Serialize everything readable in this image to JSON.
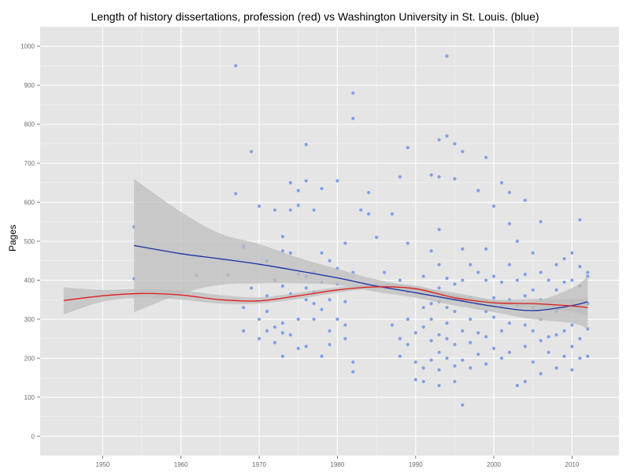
{
  "chart_data": {
    "type": "scatter",
    "title": "Length of history dissertations, profession (red) vs Washington University in St. Louis. (blue)",
    "ylabel": "Pages",
    "xlabel": "",
    "xlim": [
      1942,
      2016
    ],
    "ylim": [
      -50,
      1050
    ],
    "xticks": [
      1950,
      1960,
      1970,
      1980,
      1990,
      2000,
      2010
    ],
    "yticks": [
      0,
      100,
      200,
      300,
      400,
      500,
      600,
      700,
      800,
      900,
      1000
    ],
    "grid": true,
    "colors": {
      "points": "#7fa0e6",
      "blue_line": "#1a2fa3",
      "red_line": "#e01b1b",
      "band": "#bdbdbd",
      "panel": "#e5e5e5"
    },
    "points": [
      [
        1954,
        537
      ],
      [
        1954,
        404
      ],
      [
        1962,
        412
      ],
      [
        1966,
        414
      ],
      [
        1967,
        622
      ],
      [
        1967,
        950
      ],
      [
        1968,
        485
      ],
      [
        1968,
        488
      ],
      [
        1968,
        270
      ],
      [
        1968,
        330
      ],
      [
        1969,
        730
      ],
      [
        1969,
        380
      ],
      [
        1970,
        590
      ],
      [
        1970,
        300
      ],
      [
        1970,
        250
      ],
      [
        1971,
        450
      ],
      [
        1971,
        270
      ],
      [
        1971,
        320
      ],
      [
        1971,
        360
      ],
      [
        1972,
        400
      ],
      [
        1972,
        580
      ],
      [
        1972,
        280
      ],
      [
        1972,
        240
      ],
      [
        1973,
        475
      ],
      [
        1973,
        512
      ],
      [
        1973,
        205
      ],
      [
        1973,
        290
      ],
      [
        1973,
        385
      ],
      [
        1973,
        265
      ],
      [
        1974,
        580
      ],
      [
        1974,
        470
      ],
      [
        1974,
        650
      ],
      [
        1974,
        365
      ],
      [
        1974,
        260
      ],
      [
        1975,
        630
      ],
      [
        1975,
        592
      ],
      [
        1975,
        415
      ],
      [
        1975,
        300
      ],
      [
        1975,
        225
      ],
      [
        1976,
        748
      ],
      [
        1976,
        655
      ],
      [
        1976,
        410
      ],
      [
        1976,
        380
      ],
      [
        1976,
        350
      ],
      [
        1976,
        230
      ],
      [
        1977,
        420
      ],
      [
        1977,
        580
      ],
      [
        1977,
        370
      ],
      [
        1977,
        340
      ],
      [
        1977,
        300
      ],
      [
        1978,
        635
      ],
      [
        1978,
        470
      ],
      [
        1978,
        395
      ],
      [
        1978,
        325
      ],
      [
        1978,
        205
      ],
      [
        1979,
        450
      ],
      [
        1979,
        350
      ],
      [
        1979,
        270
      ],
      [
        1979,
        235
      ],
      [
        1980,
        655
      ],
      [
        1980,
        430
      ],
      [
        1980,
        390
      ],
      [
        1980,
        300
      ],
      [
        1981,
        285
      ],
      [
        1981,
        250
      ],
      [
        1981,
        345
      ],
      [
        1981,
        495
      ],
      [
        1982,
        880
      ],
      [
        1982,
        815
      ],
      [
        1982,
        420
      ],
      [
        1982,
        190
      ],
      [
        1982,
        165
      ],
      [
        1983,
        580
      ],
      [
        1984,
        570
      ],
      [
        1984,
        625
      ],
      [
        1985,
        510
      ],
      [
        1986,
        420
      ],
      [
        1987,
        570
      ],
      [
        1987,
        285
      ],
      [
        1988,
        665
      ],
      [
        1988,
        400
      ],
      [
        1988,
        250
      ],
      [
        1988,
        205
      ],
      [
        1989,
        740
      ],
      [
        1989,
        495
      ],
      [
        1989,
        370
      ],
      [
        1989,
        300
      ],
      [
        1989,
        235
      ],
      [
        1990,
        265
      ],
      [
        1990,
        190
      ],
      [
        1990,
        145
      ],
      [
        1991,
        410
      ],
      [
        1991,
        330
      ],
      [
        1991,
        280
      ],
      [
        1991,
        175
      ],
      [
        1991,
        140
      ],
      [
        1992,
        670
      ],
      [
        1992,
        475
      ],
      [
        1992,
        340
      ],
      [
        1992,
        300
      ],
      [
        1992,
        245
      ],
      [
        1992,
        195
      ],
      [
        1993,
        760
      ],
      [
        1993,
        530
      ],
      [
        1993,
        665
      ],
      [
        1993,
        440
      ],
      [
        1993,
        380
      ],
      [
        1993,
        345
      ],
      [
        1993,
        260
      ],
      [
        1993,
        215
      ],
      [
        1993,
        170
      ],
      [
        1993,
        130
      ],
      [
        1994,
        975
      ],
      [
        1994,
        770
      ],
      [
        1994,
        405
      ],
      [
        1994,
        330
      ],
      [
        1994,
        290
      ],
      [
        1994,
        250
      ],
      [
        1994,
        200
      ],
      [
        1995,
        750
      ],
      [
        1995,
        660
      ],
      [
        1995,
        390
      ],
      [
        1995,
        320
      ],
      [
        1995,
        235
      ],
      [
        1995,
        180
      ],
      [
        1995,
        140
      ],
      [
        1996,
        730
      ],
      [
        1996,
        480
      ],
      [
        1996,
        400
      ],
      [
        1996,
        350
      ],
      [
        1996,
        270
      ],
      [
        1996,
        195
      ],
      [
        1996,
        80
      ],
      [
        1997,
        440
      ],
      [
        1997,
        355
      ],
      [
        1997,
        300
      ],
      [
        1997,
        240
      ],
      [
        1997,
        175
      ],
      [
        1998,
        630
      ],
      [
        1998,
        420
      ],
      [
        1998,
        340
      ],
      [
        1998,
        265
      ],
      [
        1998,
        210
      ],
      [
        1999,
        715
      ],
      [
        1999,
        480
      ],
      [
        1999,
        400
      ],
      [
        1999,
        320
      ],
      [
        1999,
        255
      ],
      [
        1999,
        185
      ],
      [
        2000,
        590
      ],
      [
        2000,
        410
      ],
      [
        2000,
        355
      ],
      [
        2000,
        305
      ],
      [
        2000,
        225
      ],
      [
        2001,
        650
      ],
      [
        2001,
        395
      ],
      [
        2001,
        335
      ],
      [
        2001,
        270
      ],
      [
        2001,
        200
      ],
      [
        2002,
        625
      ],
      [
        2002,
        545
      ],
      [
        2002,
        440
      ],
      [
        2002,
        350
      ],
      [
        2002,
        290
      ],
      [
        2002,
        215
      ],
      [
        2003,
        500
      ],
      [
        2003,
        400
      ],
      [
        2003,
        335
      ],
      [
        2003,
        130
      ],
      [
        2004,
        605
      ],
      [
        2004,
        415
      ],
      [
        2004,
        360
      ],
      [
        2004,
        285
      ],
      [
        2004,
        230
      ],
      [
        2004,
        140
      ],
      [
        2005,
        470
      ],
      [
        2005,
        375
      ],
      [
        2005,
        330
      ],
      [
        2005,
        270
      ],
      [
        2005,
        190
      ],
      [
        2006,
        550
      ],
      [
        2006,
        420
      ],
      [
        2006,
        350
      ],
      [
        2006,
        300
      ],
      [
        2006,
        245
      ],
      [
        2006,
        160
      ],
      [
        2007,
        400
      ],
      [
        2007,
        340
      ],
      [
        2007,
        255
      ],
      [
        2007,
        215
      ],
      [
        2008,
        440
      ],
      [
        2008,
        375
      ],
      [
        2008,
        320
      ],
      [
        2008,
        260
      ],
      [
        2008,
        175
      ],
      [
        2009,
        455
      ],
      [
        2009,
        395
      ],
      [
        2009,
        330
      ],
      [
        2009,
        270
      ],
      [
        2009,
        205
      ],
      [
        2010,
        470
      ],
      [
        2010,
        400
      ],
      [
        2010,
        345
      ],
      [
        2010,
        285
      ],
      [
        2010,
        230
      ],
      [
        2010,
        170
      ],
      [
        2011,
        435
      ],
      [
        2011,
        385
      ],
      [
        2011,
        325
      ],
      [
        2011,
        250
      ],
      [
        2011,
        200
      ],
      [
        2011,
        555
      ],
      [
        2012,
        420
      ],
      [
        2012,
        340
      ],
      [
        2012,
        275
      ],
      [
        2012,
        205
      ],
      [
        2012,
        410
      ]
    ],
    "series": [
      {
        "color": "#1a2fa3",
        "x": [
          1954,
          1960,
          1965,
          1970,
          1975,
          1980,
          1985,
          1990,
          1995,
          2000,
          2005,
          2010,
          2012
        ],
        "y": [
          489,
          468,
          455,
          441,
          424,
          406,
          385,
          368,
          350,
          333,
          322,
          335,
          345
        ],
        "lower": [
          318,
          365,
          388,
          392,
          392,
          388,
          370,
          355,
          335,
          318,
          300,
          290,
          275
        ],
        "upper": [
          660,
          575,
          520,
          493,
          458,
          429,
          402,
          383,
          368,
          350,
          345,
          380,
          410
        ]
      },
      {
        "color": "#e01b1b",
        "x": [
          1945,
          1950,
          1955,
          1960,
          1965,
          1970,
          1975,
          1980,
          1985,
          1990,
          1995,
          2000,
          2005,
          2010,
          2012
        ],
        "y": [
          348,
          360,
          366,
          362,
          350,
          347,
          360,
          375,
          383,
          378,
          355,
          342,
          340,
          334,
          330
        ],
        "lower": [
          312,
          345,
          355,
          350,
          340,
          340,
          352,
          368,
          378,
          372,
          348,
          335,
          330,
          318,
          308
        ],
        "upper": [
          382,
          375,
          377,
          374,
          362,
          356,
          368,
          382,
          390,
          386,
          362,
          350,
          352,
          352,
          355
        ]
      }
    ]
  }
}
